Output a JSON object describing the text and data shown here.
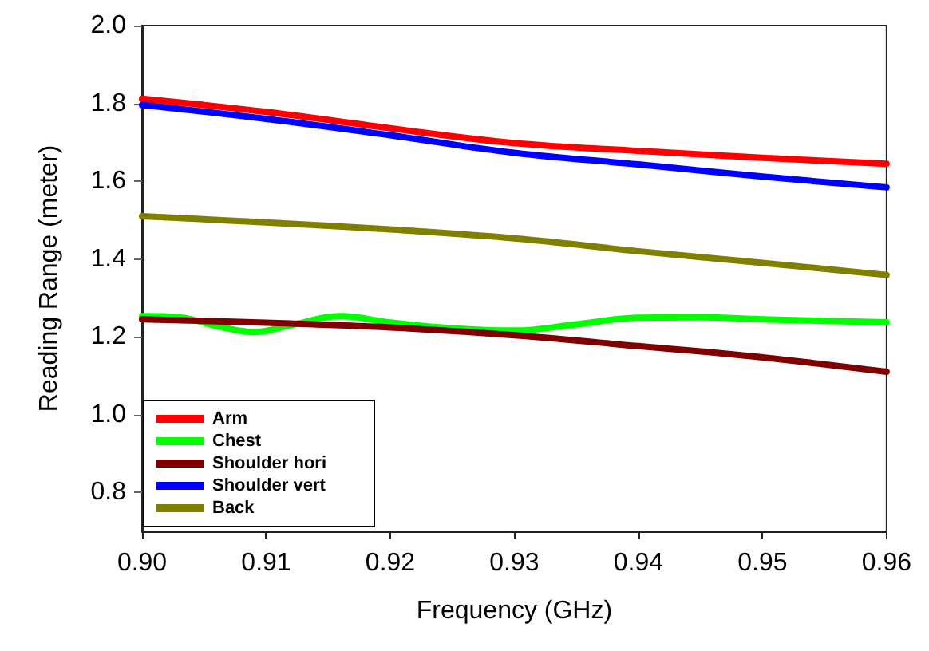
{
  "chart_data": {
    "type": "line",
    "xlabel": "Frequency (GHz)",
    "ylabel": "Reading Range (meter)",
    "xlim": [
      0.9,
      0.96
    ],
    "xticks": [
      {
        "value": 0.9,
        "label": "0.90"
      },
      {
        "value": 0.91,
        "label": "0.91"
      },
      {
        "value": 0.92,
        "label": "0.92"
      },
      {
        "value": 0.93,
        "label": "0.93"
      },
      {
        "value": 0.94,
        "label": "0.94"
      },
      {
        "value": 0.95,
        "label": "0.95"
      },
      {
        "value": 0.96,
        "label": "0.96"
      }
    ],
    "ylim": [
      0.7,
      2.0
    ],
    "yticks": [
      {
        "value": 0.8,
        "label": "0.8"
      },
      {
        "value": 1.0,
        "label": "1.0"
      },
      {
        "value": 1.2,
        "label": "1.2"
      },
      {
        "value": 1.4,
        "label": "1.4"
      },
      {
        "value": 1.6,
        "label": "1.6"
      },
      {
        "value": 1.8,
        "label": "1.8"
      },
      {
        "value": 2.0,
        "label": "2.0"
      }
    ],
    "grid": false,
    "legend": "bottom left",
    "marker": "none",
    "line_style": "solid",
    "series": [
      {
        "name": "Arm",
        "color": "#ff0000",
        "x": [
          0.9,
          0.91,
          0.92,
          0.93,
          0.94,
          0.95,
          0.96
        ],
        "values": [
          1.812,
          1.778,
          1.736,
          1.698,
          1.678,
          1.66,
          1.645
        ]
      },
      {
        "name": "Chest",
        "color": "#00ff00",
        "x": [
          0.9,
          0.903,
          0.906,
          0.909,
          0.912,
          0.916,
          0.92,
          0.925,
          0.93,
          0.935,
          0.94,
          0.945,
          0.95,
          0.955,
          0.96
        ],
        "values": [
          1.253,
          1.25,
          1.228,
          1.212,
          1.23,
          1.253,
          1.237,
          1.222,
          1.216,
          1.232,
          1.249,
          1.25,
          1.245,
          1.241,
          1.237
        ]
      },
      {
        "name": "Shoulder hori",
        "color": "#800000",
        "x": [
          0.9,
          0.91,
          0.92,
          0.93,
          0.94,
          0.95,
          0.96
        ],
        "values": [
          1.245,
          1.236,
          1.224,
          1.204,
          1.176,
          1.147,
          1.11
        ]
      },
      {
        "name": "Shoulder vert",
        "color": "#0000ff",
        "x": [
          0.9,
          0.91,
          0.92,
          0.93,
          0.94,
          0.95,
          0.96
        ],
        "values": [
          1.796,
          1.76,
          1.718,
          1.673,
          1.643,
          1.612,
          1.584
        ]
      },
      {
        "name": "Back",
        "color": "#808000",
        "x": [
          0.9,
          0.91,
          0.92,
          0.93,
          0.94,
          0.95,
          0.96
        ],
        "values": [
          1.51,
          1.494,
          1.476,
          1.453,
          1.42,
          1.39,
          1.359
        ]
      }
    ]
  }
}
